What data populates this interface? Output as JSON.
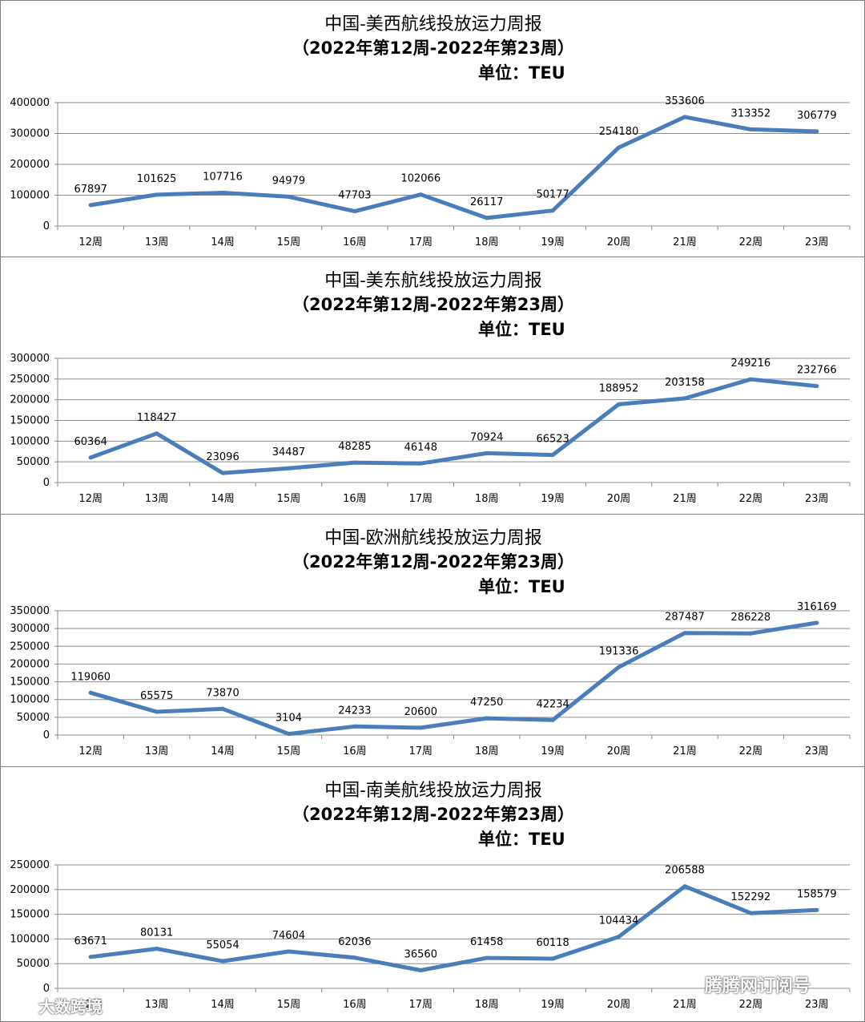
{
  "colors": {
    "line": "#4a7ebb",
    "grid": "#8c8c8c"
  },
  "categories": [
    "12周",
    "13周",
    "14周",
    "15周",
    "16周",
    "17周",
    "18周",
    "19周",
    "20周",
    "21周",
    "22周",
    "23周"
  ],
  "watermarks": {
    "left": "大数跨境",
    "right": "腾腾网订阅号"
  },
  "chart_data": [
    {
      "type": "line",
      "title": "中国-美西航线投放运力周报",
      "subtitle": "（2022年第12周-2022年第23周）",
      "unit": "单位：TEU",
      "ylim": [
        0,
        400000
      ],
      "yticks": [
        0,
        100000,
        200000,
        300000,
        400000
      ],
      "values": [
        67897,
        101625,
        107716,
        94979,
        47703,
        102066,
        26117,
        50177,
        254180,
        353606,
        313352,
        306779
      ],
      "grid": true
    },
    {
      "type": "line",
      "title": "中国-美东航线投放运力周报",
      "subtitle": "（2022年第12周-2022年第23周）",
      "unit": "单位：TEU",
      "ylim": [
        0,
        300000
      ],
      "yticks": [
        0,
        50000,
        100000,
        150000,
        200000,
        250000,
        300000
      ],
      "values": [
        60364,
        118427,
        23096,
        34487,
        48285,
        46148,
        70924,
        66523,
        188952,
        203158,
        249216,
        232766
      ],
      "grid": true
    },
    {
      "type": "line",
      "title": "中国-欧洲航线投放运力周报",
      "subtitle": "（2022年第12周-2022年第23周）",
      "unit": "单位：TEU",
      "ylim": [
        0,
        350000
      ],
      "yticks": [
        0,
        50000,
        100000,
        150000,
        200000,
        250000,
        300000,
        350000
      ],
      "values": [
        119060,
        65575,
        73870,
        3104,
        24233,
        20600,
        47250,
        42234,
        191336,
        287487,
        286228,
        316169
      ],
      "grid": true
    },
    {
      "type": "line",
      "title": "中国-南美航线投放运力周报",
      "subtitle": "（2022年第12周-2022年第23周）",
      "unit": "单位：TEU",
      "ylim": [
        0,
        250000
      ],
      "yticks": [
        0,
        50000,
        100000,
        150000,
        200000,
        250000
      ],
      "values": [
        63671,
        80131,
        55054,
        74604,
        62036,
        36560,
        61458,
        60118,
        104434,
        206588,
        152292,
        158579
      ],
      "grid": true
    }
  ]
}
